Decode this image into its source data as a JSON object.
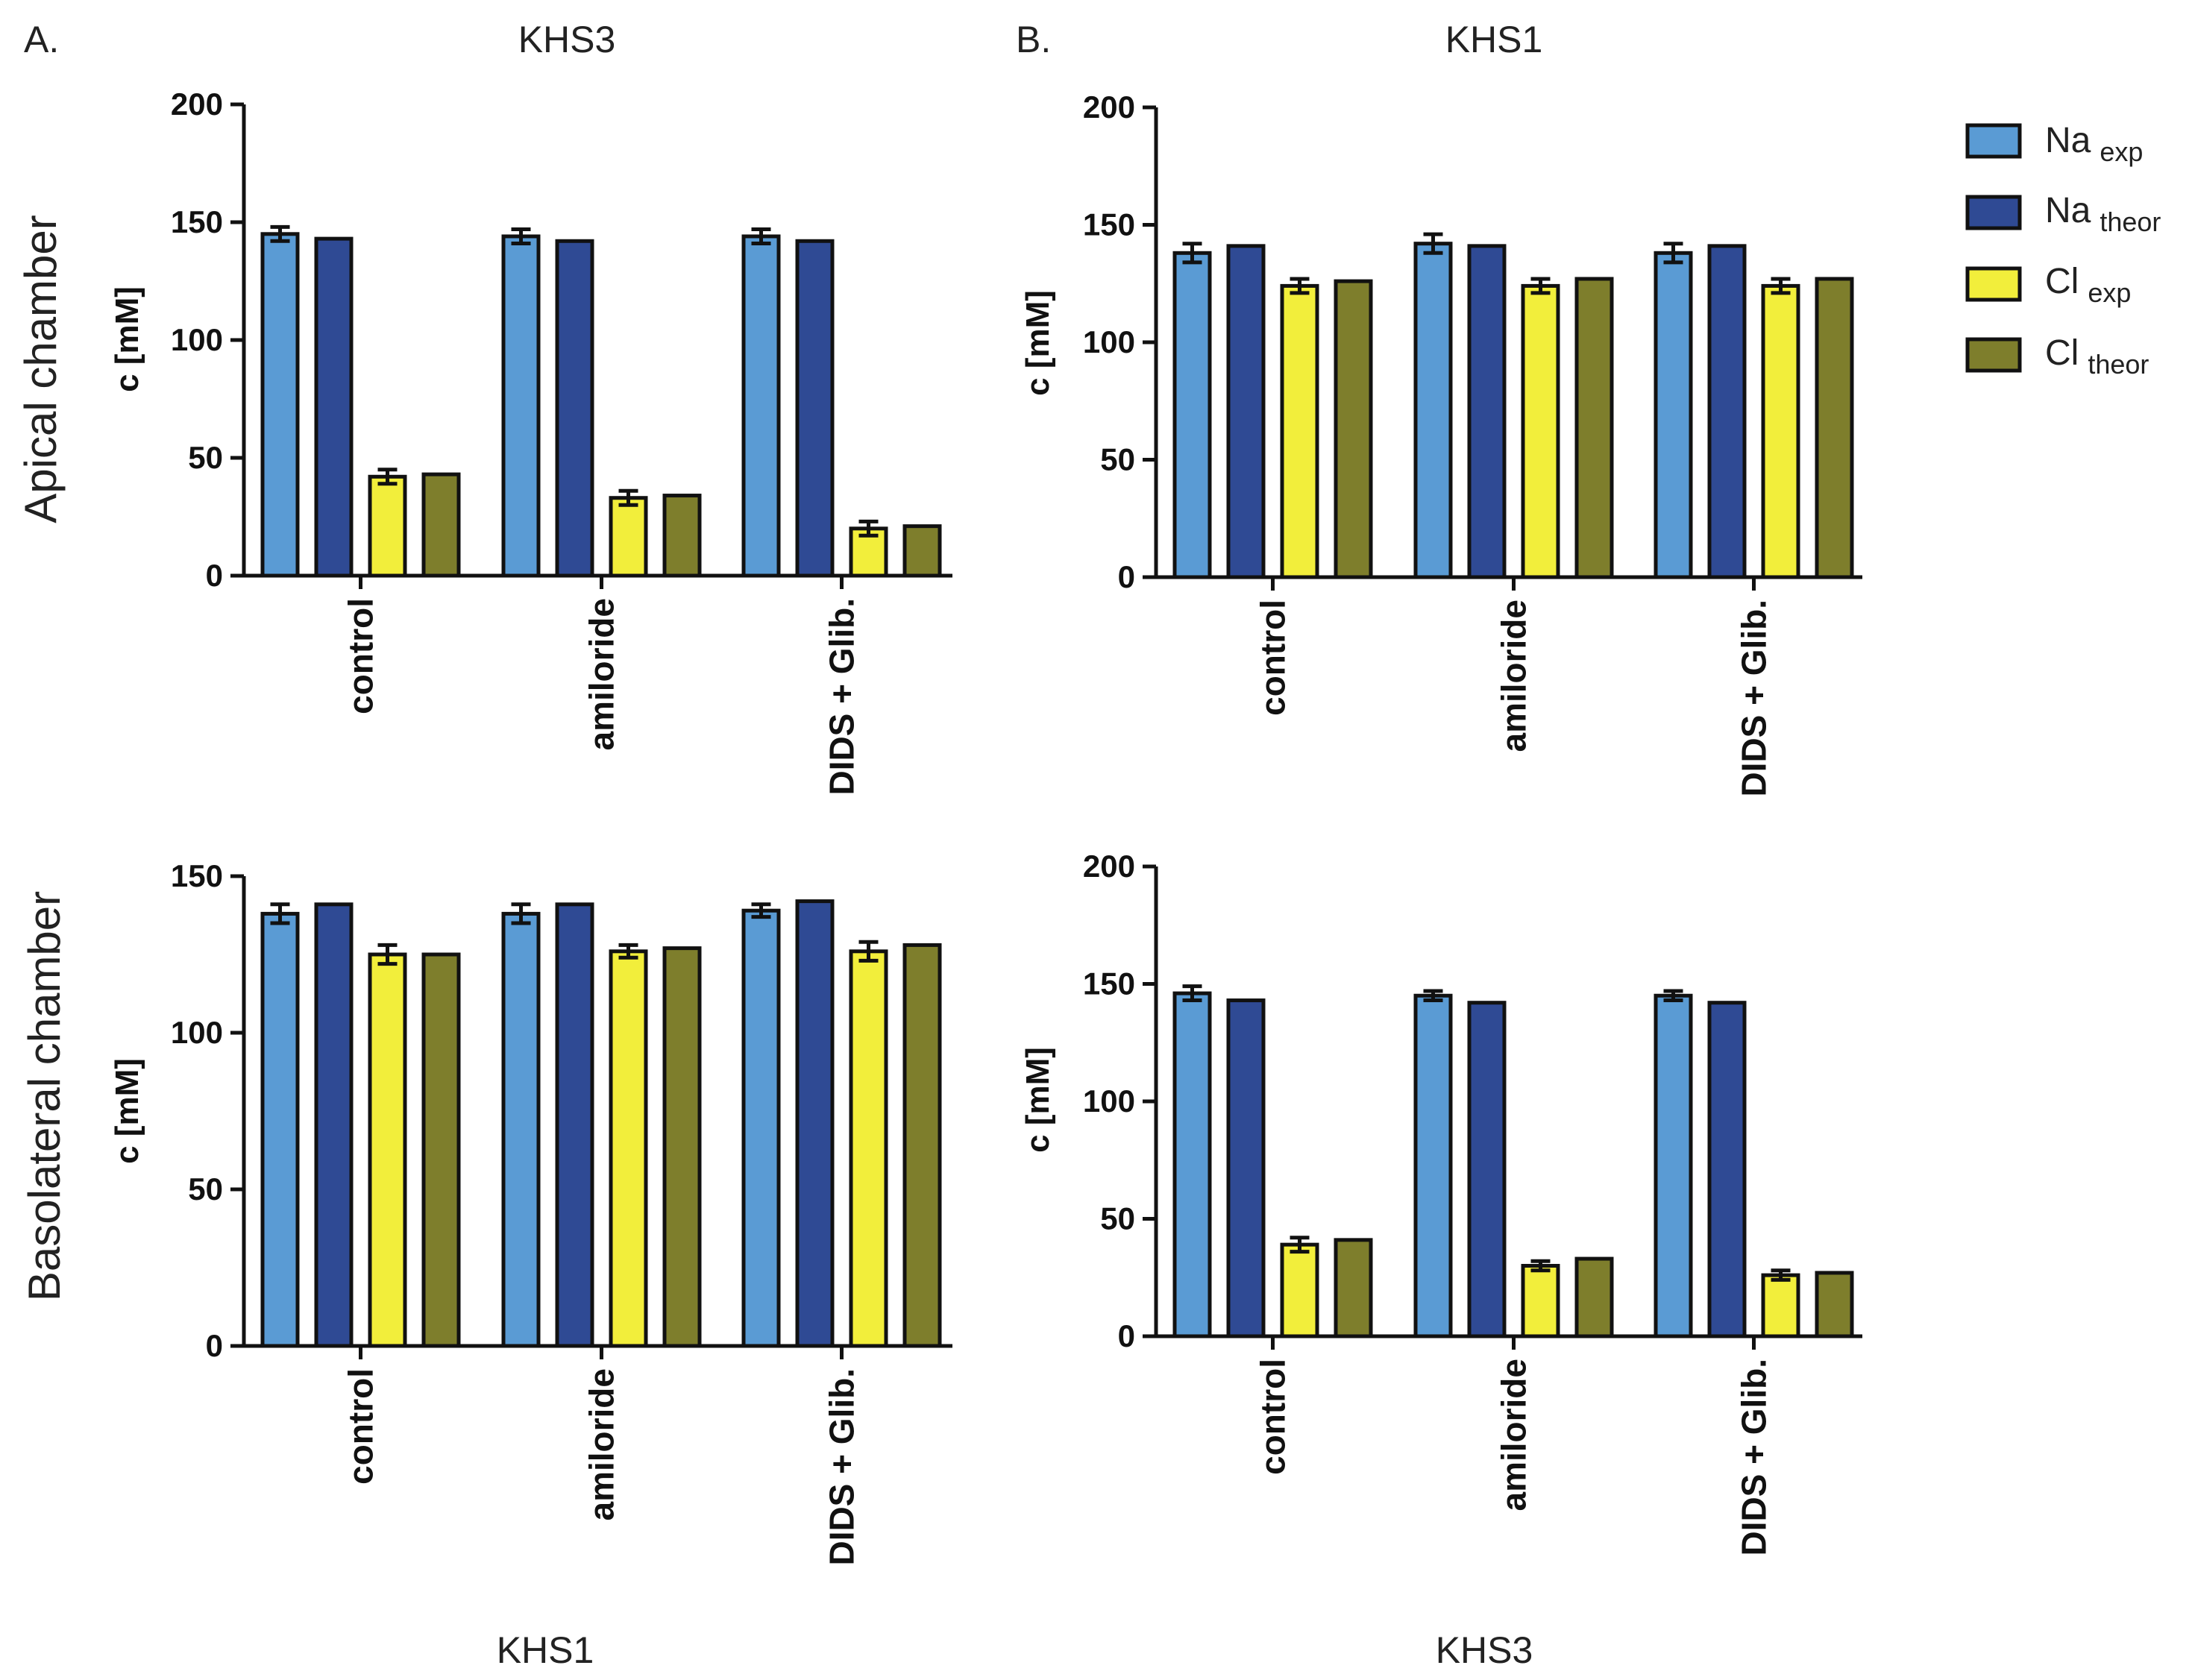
{
  "figure": {
    "panel_a": "A.",
    "panel_b": "B.",
    "row_top": "Apical chamber",
    "row_bottom": "Basolateral chamber",
    "title_top_left": "KHS3",
    "title_top_right": "KHS1",
    "title_bottom_left": "KHS1",
    "title_bottom_right": "KHS3"
  },
  "legend": [
    {
      "main": "Na",
      "sub": "exp",
      "color": "#5a9bd4"
    },
    {
      "main": "Na",
      "sub": "theor",
      "color": "#2f4a94"
    },
    {
      "main": "Cl",
      "sub": "exp",
      "color": "#f2ee3b"
    },
    {
      "main": "Cl",
      "sub": "theor",
      "color": "#7e7e2c"
    }
  ],
  "chart_data": [
    {
      "type": "bar",
      "panel": "A",
      "chamber": "Apical chamber",
      "title": "KHS3",
      "ylabel": "c [mM]",
      "ylim": [
        0,
        200
      ],
      "yticks": [
        "0",
        "50",
        "100",
        "150",
        "200"
      ],
      "categories": [
        "control",
        "amiloride",
        "DIDS + Glib."
      ],
      "series": [
        {
          "name": "Na exp",
          "values": [
            145,
            144,
            144
          ],
          "errors": [
            3,
            3,
            3
          ]
        },
        {
          "name": "Na theor",
          "values": [
            143,
            142,
            142
          ]
        },
        {
          "name": "Cl exp",
          "values": [
            42,
            33,
            20
          ],
          "errors": [
            3,
            3,
            3
          ]
        },
        {
          "name": "Cl theor",
          "values": [
            43,
            34,
            21
          ]
        }
      ]
    },
    {
      "type": "bar",
      "panel": "B",
      "chamber": "Apical chamber",
      "title": "KHS1",
      "ylabel": "c [mM]",
      "ylim": [
        0,
        200
      ],
      "yticks": [
        "0",
        "50",
        "100",
        "150",
        "200"
      ],
      "categories": [
        "control",
        "amiloride",
        "DIDS + Glib."
      ],
      "series": [
        {
          "name": "Na exp",
          "values": [
            138,
            142,
            138
          ],
          "errors": [
            4,
            4,
            4
          ]
        },
        {
          "name": "Na theor",
          "values": [
            141,
            141,
            141
          ]
        },
        {
          "name": "Cl exp",
          "values": [
            124,
            124,
            124
          ],
          "errors": [
            3,
            3,
            3
          ]
        },
        {
          "name": "Cl theor",
          "values": [
            126,
            127,
            127
          ]
        }
      ]
    },
    {
      "type": "bar",
      "panel": "A",
      "chamber": "Basolateral chamber",
      "title": "KHS1",
      "ylabel": "c [mM]",
      "ylim": [
        0,
        150
      ],
      "yticks": [
        "0",
        "50",
        "100",
        "150"
      ],
      "categories": [
        "control",
        "amiloride",
        "DIDS + Glib."
      ],
      "series": [
        {
          "name": "Na exp",
          "values": [
            138,
            138,
            139
          ],
          "errors": [
            3,
            3,
            2
          ]
        },
        {
          "name": "Na theor",
          "values": [
            141,
            141,
            142
          ]
        },
        {
          "name": "Cl exp",
          "values": [
            125,
            126,
            126
          ],
          "errors": [
            3,
            2,
            3
          ]
        },
        {
          "name": "Cl theor",
          "values": [
            125,
            127,
            128
          ]
        }
      ]
    },
    {
      "type": "bar",
      "panel": "B",
      "chamber": "Basolateral chamber",
      "title": "KHS3",
      "ylabel": "c [mM]",
      "ylim": [
        0,
        200
      ],
      "yticks": [
        "0",
        "50",
        "100",
        "150",
        "200"
      ],
      "categories": [
        "control",
        "amiloride",
        "DIDS + Glib."
      ],
      "series": [
        {
          "name": "Na exp",
          "values": [
            146,
            145,
            145
          ],
          "errors": [
            3,
            2,
            2
          ]
        },
        {
          "name": "Na theor",
          "values": [
            143,
            142,
            142
          ]
        },
        {
          "name": "Cl exp",
          "values": [
            39,
            30,
            26
          ],
          "errors": [
            3,
            2,
            2
          ]
        },
        {
          "name": "Cl theor",
          "values": [
            41,
            33,
            27
          ]
        }
      ]
    }
  ]
}
